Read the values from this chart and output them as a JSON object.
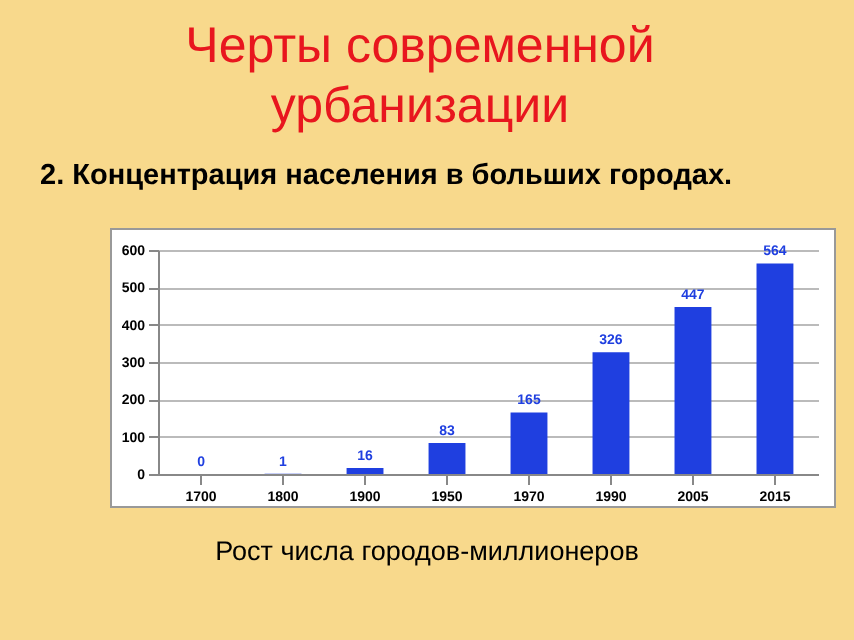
{
  "chart_data": {
    "type": "bar",
    "title": "Черты современной урбанизации",
    "subtitle": "2. Концентрация населения в больших городах.",
    "categories": [
      "1700",
      "1800",
      "1900",
      "1950",
      "1970",
      "1990",
      "2005",
      "2015"
    ],
    "values": [
      0,
      1,
      16,
      83,
      165,
      326,
      447,
      564
    ],
    "color": "#1f3fe0",
    "ylim": [
      0,
      600
    ],
    "yticks": [
      0,
      100,
      200,
      300,
      400,
      500,
      600
    ],
    "grid": "y",
    "data_labels": true,
    "annotations": [
      "Рост числа городов-миллионеров"
    ]
  }
}
